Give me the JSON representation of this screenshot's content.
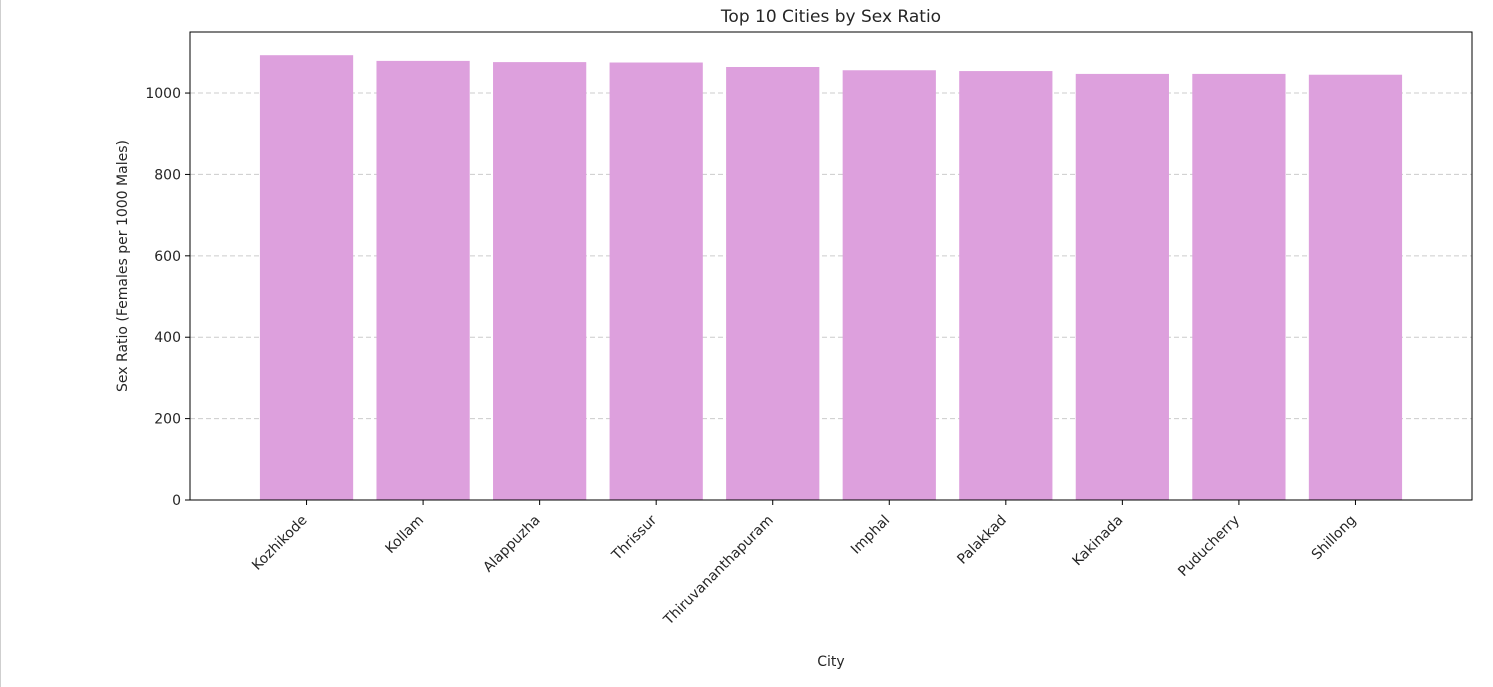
{
  "chart_data": {
    "type": "bar",
    "title": "Top 10 Cities by Sex Ratio",
    "xlabel": "City",
    "ylabel": "Sex Ratio (Females per 1000 Males)",
    "categories": [
      "Kozhikode",
      "Kollam",
      "Alappuzha",
      "Thrissur",
      "Thiruvananthapuram",
      "Imphal",
      "Palakkad",
      "Kakinada",
      "Puducherry",
      "Shillong"
    ],
    "values": [
      1093,
      1079,
      1076,
      1075,
      1064,
      1056,
      1054,
      1047,
      1047,
      1045
    ],
    "ylim": [
      0,
      1150
    ],
    "yticks": [
      0,
      200,
      400,
      600,
      800,
      1000
    ],
    "grid": "y-dashed",
    "bar_color": "#dda0dd"
  }
}
